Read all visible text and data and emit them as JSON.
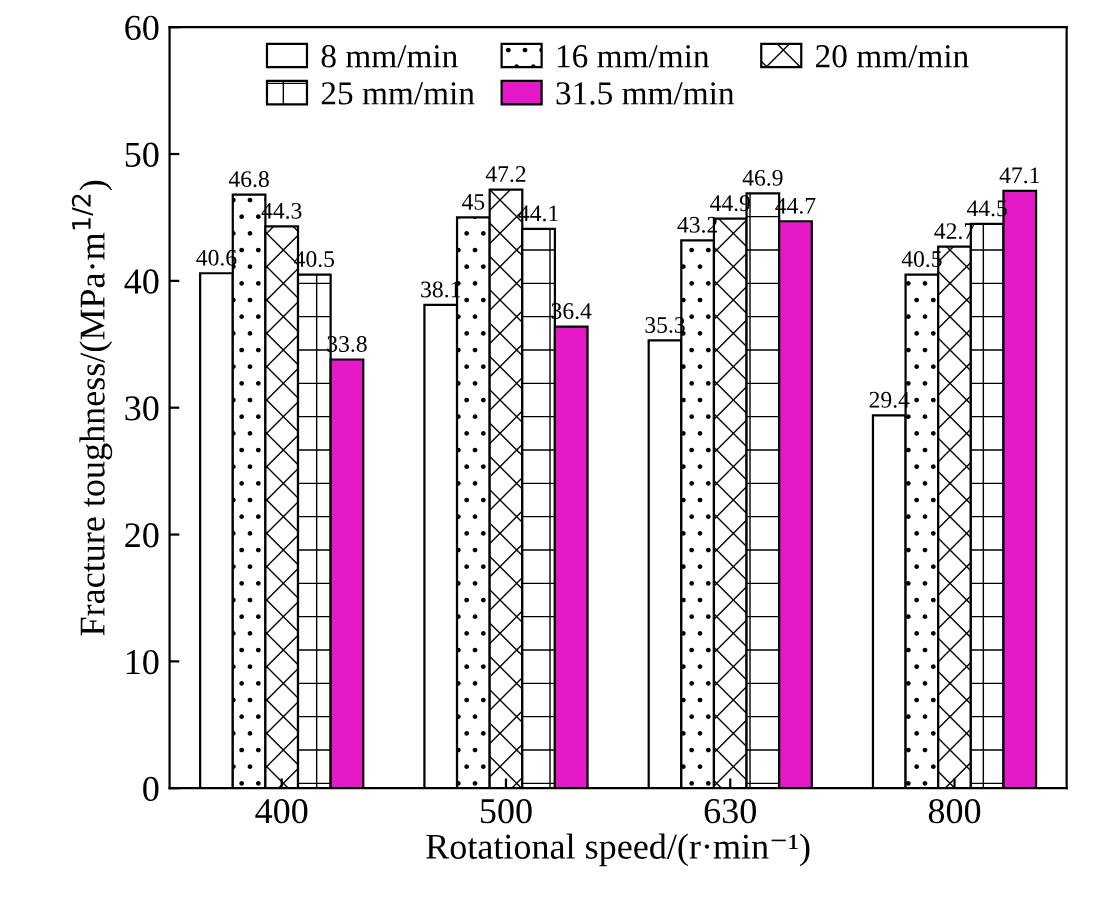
{
  "chart_data": {
    "type": "bar",
    "xlabel": "Rotational speed/(r·min⁻¹)",
    "ylabel": "Fracture toughness/(MPa·m$^{1/2}$)",
    "categories": [
      "400",
      "500",
      "630",
      "800"
    ],
    "series": [
      {
        "name": "8 mm/min",
        "color": "#ffffff",
        "values": [
          40.6,
          38.1,
          35.3,
          29.4
        ]
      },
      {
        "name": "16 mm/min",
        "color": "#ffffff",
        "values": [
          46.8,
          45,
          43.2,
          40.5
        ]
      },
      {
        "name": "20 mm/min",
        "color": "#ffffff",
        "values": [
          44.3,
          47.2,
          44.9,
          42.7
        ]
      },
      {
        "name": "25 mm/min",
        "color": "#ffffff",
        "values": [
          40.5,
          44.1,
          46.9,
          44.5
        ]
      },
      {
        "name": "31.5 mm/min",
        "color": "#e619c8",
        "values": [
          33.8,
          36.4,
          44.7,
          47.1
        ]
      }
    ],
    "ylim": [
      0,
      60
    ],
    "yticks": [
      0,
      10,
      20,
      30,
      40,
      50,
      60
    ],
    "data_labels": true,
    "legend": "top",
    "grid": false
  }
}
